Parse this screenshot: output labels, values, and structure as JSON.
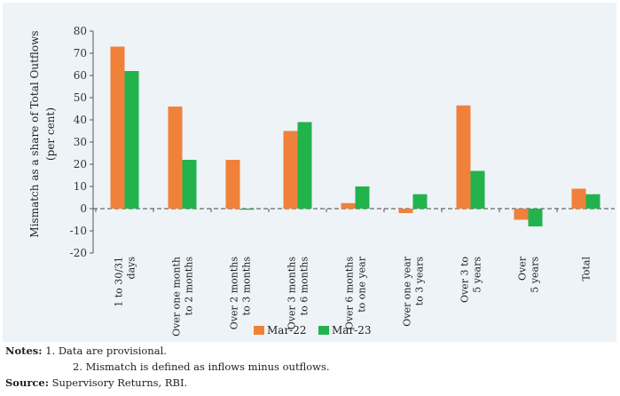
{
  "chart_data": {
    "type": "bar",
    "ylabel_line1": "Mismatch as a share of Total Outflows",
    "ylabel_line2": "(per cent)",
    "ylim": [
      -20,
      80
    ],
    "yticks": [
      80,
      70,
      60,
      50,
      40,
      30,
      20,
      10,
      0,
      -10,
      -20
    ],
    "ytick_labels": [
      "80",
      "70",
      "60",
      "50",
      "40",
      "30",
      "20",
      "10",
      "0",
      "-10",
      "-20"
    ],
    "categories": [
      [
        "1 to 30/31",
        "days"
      ],
      [
        "Over one month",
        "to 2 months"
      ],
      [
        "Over 2 months",
        "to 3 months"
      ],
      [
        "Over 3 months",
        "to 6 months"
      ],
      [
        "Over 6 months",
        "to one year"
      ],
      [
        "Over one year",
        "to 3 years"
      ],
      [
        "Over 3 to",
        "5 years"
      ],
      [
        "Over",
        "5 years"
      ],
      [
        "Total"
      ]
    ],
    "series": [
      {
        "name": "Mar-22",
        "color": "#f0813a",
        "values": [
          73,
          46,
          22,
          35,
          2.5,
          -2,
          46.5,
          -5,
          9
        ]
      },
      {
        "name": "Mar-23",
        "color": "#22b34c",
        "values": [
          62,
          22,
          -0.5,
          39,
          10,
          6.5,
          17,
          -8,
          6.5
        ]
      }
    ],
    "legend_position": "bottom-center",
    "grid": false
  },
  "notes": {
    "label": "Notes:",
    "line1": "1. Data are provisional.",
    "line2": "2. Mismatch is defined as inflows minus outflows."
  },
  "source": {
    "label": "Source:",
    "text": "Supervisory Returns, RBI."
  }
}
